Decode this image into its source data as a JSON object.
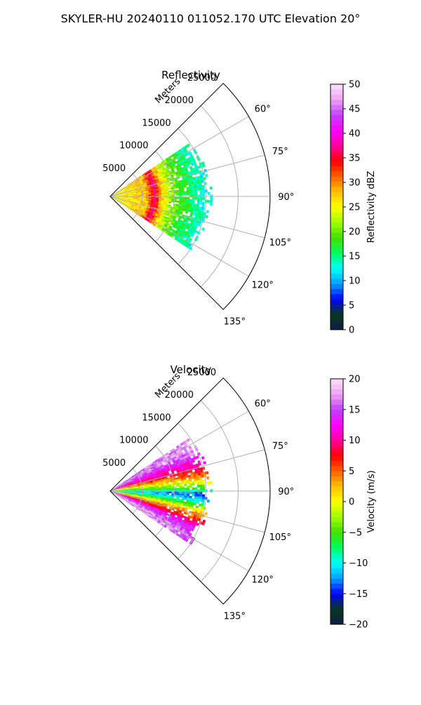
{
  "suptitle": "SKYLER-HU  20240110  011052.170 UTC Elevation 20°",
  "chart_data": [
    {
      "type": "polar-sector",
      "title": "Reflectivity",
      "range_label": "Meters",
      "range_ticks": [
        5000,
        10000,
        15000,
        20000,
        25000
      ],
      "range_tick_labels": [
        "5000",
        "10000",
        "15000",
        "20000",
        "25000"
      ],
      "angle_ticks": [
        60,
        75,
        90,
        105,
        120,
        135
      ],
      "angle_tick_labels": [
        "60°",
        "75°",
        "90°",
        "105°",
        "120°",
        "135°"
      ],
      "theta_range": [
        45,
        135
      ],
      "r_range": [
        0,
        25000
      ],
      "grid": true,
      "field": {
        "variable": "Reflectivity",
        "profile_range_m": [
          0,
          2000,
          4000,
          5500,
          6200,
          6800,
          7500,
          9000,
          11000,
          13000,
          14500
        ],
        "profile_value": [
          24,
          26,
          27,
          28,
          33,
          37,
          30,
          22,
          18,
          15,
          13
        ],
        "coverage_max_range_m": [
          13800,
          14500,
          14800,
          14500,
          14000
        ]
      },
      "colorbar": {
        "label": "Reflectivity dBZ",
        "min": 0,
        "max": 50,
        "ticks": [
          0,
          5,
          10,
          15,
          20,
          25,
          30,
          35,
          40,
          45,
          50
        ],
        "tick_labels": [
          "0",
          "5",
          "10",
          "15",
          "20",
          "25",
          "30",
          "35",
          "40",
          "45",
          "50"
        ]
      }
    },
    {
      "type": "polar-sector",
      "title": "Velocity",
      "range_label": "Meters",
      "range_ticks": [
        5000,
        10000,
        15000,
        20000,
        25000
      ],
      "range_tick_labels": [
        "5000",
        "10000",
        "15000",
        "20000",
        "25000"
      ],
      "angle_ticks": [
        60,
        75,
        90,
        105,
        120,
        135
      ],
      "angle_tick_labels": [
        "60°",
        "75°",
        "90°",
        "105°",
        "120°",
        "135°"
      ],
      "theta_range": [
        45,
        135
      ],
      "r_range": [
        0,
        25000
      ],
      "grid": true,
      "field": {
        "variable": "Velocity",
        "profile_angle_deg": [
          62,
          68,
          74,
          80,
          84,
          88,
          91,
          94,
          98,
          103,
          108,
          112,
          118
        ],
        "profile_value": [
          16,
          12,
          8,
          2,
          -3,
          -8,
          -12,
          -10,
          -4,
          4,
          9,
          14,
          17
        ],
        "coverage_max_range_m": [
          13800,
          14500,
          14800,
          14500,
          14000
        ]
      },
      "colorbar": {
        "label": "Velocity (m/s)",
        "min": -20,
        "max": 20,
        "ticks": [
          -20,
          -15,
          -10,
          -5,
          0,
          5,
          10,
          15,
          20
        ],
        "tick_labels": [
          "−20",
          "−15",
          "−10",
          "−5",
          "0",
          "5",
          "10",
          "15",
          "20"
        ]
      }
    }
  ],
  "colormap": {
    "name": "pyart-style",
    "stops": [
      "#0c1a4a",
      "#0a3a1a",
      "#0000ff",
      "#00a0ff",
      "#00ffff",
      "#00ff60",
      "#40e000",
      "#a0ff00",
      "#ffff00",
      "#ffc000",
      "#ff6000",
      "#ff0000",
      "#ff00a0",
      "#ff00ff",
      "#c040ff",
      "#f0a0f0",
      "#ffe0ff"
    ]
  }
}
